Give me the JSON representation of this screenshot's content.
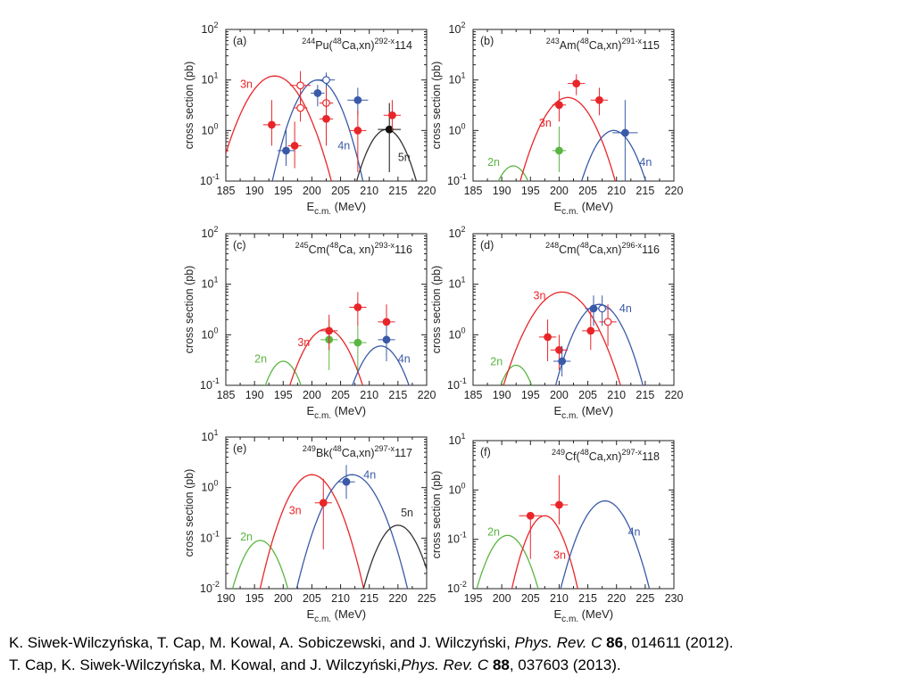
{
  "chart_data": [
    {
      "type": "scatter",
      "panel": "(a)",
      "title": {
        "pre": "244",
        "mid1": "Pu(",
        "sup1": "48",
        "mid2": "Ca,xn)",
        "sup2": "292-x",
        "post": "114"
      },
      "xlabel": "E",
      "xlabel_sub": "c.m.",
      "xlabel_unit": "(MeV)",
      "ylabel": "cross section (pb)",
      "xlim": [
        185,
        220
      ],
      "ylim": [
        0.1,
        100
      ],
      "xticks": [
        "185",
        "190",
        "195",
        "200",
        "205",
        "210",
        "215",
        "220"
      ],
      "yticks": [
        {
          "base": "10",
          "exp": "-1",
          "v": 0.1
        },
        {
          "base": "10",
          "exp": "0",
          "v": 1
        },
        {
          "base": "10",
          "exp": "1",
          "v": 10
        },
        {
          "base": "10",
          "exp": "2",
          "v": 100
        }
      ],
      "series": [
        {
          "name": "3n",
          "color": "#e8262a",
          "curve": {
            "peak": 12,
            "x0": 193.5,
            "sigma": 3.2
          },
          "label": {
            "text": "3n",
            "x": 187.5,
            "y": 7
          }
        },
        {
          "name": "4n",
          "color": "#3a5aa8",
          "curve": {
            "peak": 10,
            "x0": 201,
            "sigma": 2.6
          },
          "label": {
            "text": "4n",
            "x": 204.5,
            "y": 0.42
          }
        },
        {
          "name": "5n",
          "color": "#333333",
          "curve": {
            "peak": 1.05,
            "x0": 213,
            "sigma": 2.4
          },
          "label": {
            "text": "5n",
            "x": 215,
            "y": 0.25
          }
        }
      ],
      "points": [
        {
          "x": 193,
          "y": 1.3,
          "color": "#e8262a",
          "filled": true,
          "xerr": 1.5,
          "ylo": 0.5,
          "yhi": 4
        },
        {
          "x": 197,
          "y": 0.5,
          "color": "#e8262a",
          "filled": true,
          "xerr": 1.2,
          "ylo": 0.18,
          "yhi": 1.5
        },
        {
          "x": 195.5,
          "y": 0.4,
          "color": "#3a5aa8",
          "filled": true,
          "xerr": 1.5,
          "ylo": 0.2,
          "yhi": 1.1
        },
        {
          "x": 198,
          "y": 7.8,
          "color": "#e8262a",
          "filled": false,
          "xerr": 1.8,
          "ylo": 3,
          "yhi": 15
        },
        {
          "x": 198,
          "y": 2.8,
          "color": "#e8262a",
          "filled": false,
          "xerr": 1.2,
          "ylo": 1.5,
          "yhi": 5
        },
        {
          "x": 201,
          "y": 5.5,
          "color": "#3a5aa8",
          "filled": true,
          "xerr": 1.2,
          "ylo": 3,
          "yhi": 8
        },
        {
          "x": 202.5,
          "y": 10,
          "color": "#3a5aa8",
          "filled": false,
          "xerr": 1.5,
          "ylo": 7,
          "yhi": 14
        },
        {
          "x": 202.5,
          "y": 3.5,
          "color": "#e8262a",
          "filled": false,
          "xerr": 1.2,
          "ylo": 1.5,
          "yhi": 7
        },
        {
          "x": 202.5,
          "y": 1.7,
          "color": "#e8262a",
          "filled": true,
          "xerr": 1.2,
          "ylo": 0.5,
          "yhi": 4
        },
        {
          "x": 208,
          "y": 4,
          "color": "#3a5aa8",
          "filled": true,
          "xerr": 1.8,
          "ylo": 2,
          "yhi": 7
        },
        {
          "x": 208,
          "y": 1,
          "color": "#e8262a",
          "filled": true,
          "xerr": 1.5,
          "ylo": 0.15,
          "yhi": 2.5
        },
        {
          "x": 213.5,
          "y": 1.05,
          "color": "#111111",
          "filled": true,
          "xerr": 2,
          "ylo": 0.15,
          "yhi": 3.5
        },
        {
          "x": 214,
          "y": 2,
          "color": "#e8262a",
          "filled": true,
          "xerr": 1.5,
          "ylo": 1,
          "yhi": 4
        }
      ]
    },
    {
      "type": "scatter",
      "panel": "(b)",
      "title": {
        "pre": "243",
        "mid1": "Am(",
        "sup1": "48",
        "mid2": "Ca,xn)",
        "sup2": "291-x",
        "post": "115"
      },
      "xlabel": "E",
      "xlabel_sub": "c.m.",
      "xlabel_unit": "(MeV)",
      "ylabel": "cross section (pb)",
      "xlim": [
        185,
        220
      ],
      "ylim": [
        0.1,
        100
      ],
      "xticks": [
        "185",
        "190",
        "195",
        "200",
        "205",
        "210",
        "215",
        "220"
      ],
      "yticks": [
        {
          "base": "10",
          "exp": "-1",
          "v": 0.1
        },
        {
          "base": "10",
          "exp": "0",
          "v": 1
        },
        {
          "base": "10",
          "exp": "1",
          "v": 10
        },
        {
          "base": "10",
          "exp": "2",
          "v": 100
        }
      ],
      "series": [
        {
          "name": "2n",
          "color": "#5ab642",
          "curve": {
            "peak": 0.2,
            "x0": 192,
            "sigma": 2.2
          },
          "label": {
            "text": "2n",
            "x": 187.5,
            "y": 0.2
          }
        },
        {
          "name": "3n",
          "color": "#e8262a",
          "curve": {
            "peak": 4.5,
            "x0": 201.5,
            "sigma": 3
          },
          "label": {
            "text": "3n",
            "x": 196.5,
            "y": 1.2
          }
        },
        {
          "name": "4n",
          "color": "#3a5aa8",
          "curve": {
            "peak": 1,
            "x0": 209.5,
            "sigma": 2.6
          },
          "label": {
            "text": "4n",
            "x": 214,
            "y": 0.2
          }
        }
      ],
      "points": [
        {
          "x": 200,
          "y": 0.4,
          "color": "#5ab642",
          "filled": true,
          "xerr": 1.2,
          "ylo": 0.15,
          "yhi": 1.2
        },
        {
          "x": 200,
          "y": 3.2,
          "color": "#e8262a",
          "filled": true,
          "xerr": 1.2,
          "ylo": 1.5,
          "yhi": 6
        },
        {
          "x": 203,
          "y": 8.5,
          "color": "#e8262a",
          "filled": true,
          "xerr": 1.5,
          "ylo": 5,
          "yhi": 13
        },
        {
          "x": 207,
          "y": 4,
          "color": "#e8262a",
          "filled": true,
          "xerr": 1.5,
          "ylo": 2,
          "yhi": 7
        },
        {
          "x": 211.5,
          "y": 0.9,
          "color": "#3a5aa8",
          "filled": true,
          "xerr": 2.2,
          "ylo": 0.1,
          "yhi": 4
        }
      ]
    },
    {
      "type": "scatter",
      "panel": "(c)",
      "title": {
        "pre": "245",
        "mid1": "Cm(",
        "sup1": "48",
        "mid2": "Ca, xn)",
        "sup2": "293-x",
        "post": "116"
      },
      "xlabel": "E",
      "xlabel_sub": "c.m.",
      "xlabel_unit": "(MeV)",
      "ylabel": "cross section (pb)",
      "xlim": [
        185,
        220
      ],
      "ylim": [
        0.1,
        100
      ],
      "xticks": [
        "185",
        "190",
        "195",
        "200",
        "205",
        "210",
        "215",
        "220"
      ],
      "yticks": [
        {
          "base": "10",
          "exp": "-1",
          "v": 0.1
        },
        {
          "base": "10",
          "exp": "0",
          "v": 1
        },
        {
          "base": "10",
          "exp": "1",
          "v": 10
        },
        {
          "base": "10",
          "exp": "2",
          "v": 100
        }
      ],
      "series": [
        {
          "name": "2n",
          "color": "#5ab642",
          "curve": {
            "peak": 0.3,
            "x0": 195,
            "sigma": 2.1
          },
          "label": {
            "text": "2n",
            "x": 190,
            "y": 0.28
          }
        },
        {
          "name": "3n",
          "color": "#e8262a",
          "curve": {
            "peak": 1.3,
            "x0": 202.5,
            "sigma": 2.8
          },
          "label": {
            "text": "3n",
            "x": 197.5,
            "y": 0.6
          }
        },
        {
          "name": "4n",
          "color": "#3a5aa8",
          "curve": {
            "peak": 0.6,
            "x0": 212,
            "sigma": 2.6
          },
          "label": {
            "text": "4n",
            "x": 215,
            "y": 0.28
          }
        }
      ],
      "points": [
        {
          "x": 203,
          "y": 0.8,
          "color": "#5ab642",
          "filled": true,
          "xerr": 1.5,
          "ylo": 0.2,
          "yhi": 2
        },
        {
          "x": 203,
          "y": 1.2,
          "color": "#e8262a",
          "filled": true,
          "xerr": 1.5,
          "ylo": 0.5,
          "yhi": 2.5
        },
        {
          "x": 208,
          "y": 0.7,
          "color": "#5ab642",
          "filled": true,
          "xerr": 1.5,
          "ylo": 0.2,
          "yhi": 1.5
        },
        {
          "x": 208,
          "y": 3.5,
          "color": "#e8262a",
          "filled": true,
          "xerr": 1.5,
          "ylo": 1.5,
          "yhi": 7
        },
        {
          "x": 213,
          "y": 1.8,
          "color": "#e8262a",
          "filled": true,
          "xerr": 1.5,
          "ylo": 0.7,
          "yhi": 4
        },
        {
          "x": 213,
          "y": 0.8,
          "color": "#3a5aa8",
          "filled": true,
          "xerr": 1.5,
          "ylo": 0.3,
          "yhi": 1.5
        }
      ]
    },
    {
      "type": "scatter",
      "panel": "(d)",
      "title": {
        "pre": "248",
        "mid1": "Cm(",
        "sup1": "48",
        "mid2": "Ca,xn)",
        "sup2": "296-x",
        "post": "116"
      },
      "xlabel": "E",
      "xlabel_sub": "c.m.",
      "xlabel_unit": "(MeV)",
      "ylabel": "cross section (pb)",
      "xlim": [
        185,
        220
      ],
      "ylim": [
        0.1,
        100
      ],
      "xticks": [
        "185",
        "190",
        "195",
        "200",
        "205",
        "210",
        "215",
        "220"
      ],
      "yticks": [
        {
          "base": "10",
          "exp": "-1",
          "v": 0.1
        },
        {
          "base": "10",
          "exp": "0",
          "v": 1
        },
        {
          "base": "10",
          "exp": "1",
          "v": 10
        },
        {
          "base": "10",
          "exp": "2",
          "v": 100
        }
      ],
      "series": [
        {
          "name": "2n",
          "color": "#5ab642",
          "curve": {
            "peak": 0.25,
            "x0": 192.5,
            "sigma": 2
          },
          "label": {
            "text": "2n",
            "x": 188,
            "y": 0.25
          }
        },
        {
          "name": "3n",
          "color": "#e8262a",
          "curve": {
            "peak": 7,
            "x0": 200.5,
            "sigma": 3.5
          },
          "label": {
            "text": "3n",
            "x": 195.5,
            "y": 5
          }
        },
        {
          "name": "4n",
          "color": "#3a5aa8",
          "curve": {
            "peak": 4,
            "x0": 207,
            "sigma": 2.8
          },
          "label": {
            "text": "4n",
            "x": 210.5,
            "y": 2.8
          }
        }
      ],
      "points": [
        {
          "x": 198,
          "y": 0.9,
          "color": "#e8262a",
          "filled": true,
          "xerr": 1.5,
          "ylo": 0.3,
          "yhi": 2
        },
        {
          "x": 200,
          "y": 0.5,
          "color": "#e8262a",
          "filled": true,
          "xerr": 1.5,
          "ylo": 0.2,
          "yhi": 1
        },
        {
          "x": 200.5,
          "y": 0.3,
          "color": "#3a5aa8",
          "filled": true,
          "xerr": 1.5,
          "ylo": 0.15,
          "yhi": 0.6
        },
        {
          "x": 205.5,
          "y": 1.2,
          "color": "#e8262a",
          "filled": true,
          "xerr": 1.5,
          "ylo": 0.5,
          "yhi": 3
        },
        {
          "x": 206,
          "y": 3.3,
          "color": "#3a5aa8",
          "filled": true,
          "xerr": 1.5,
          "ylo": 1.5,
          "yhi": 6
        },
        {
          "x": 207.5,
          "y": 3.3,
          "color": "#3a5aa8",
          "filled": false,
          "xerr": 1.5,
          "ylo": 1.5,
          "yhi": 6
        },
        {
          "x": 208.5,
          "y": 1.8,
          "color": "#e8262a",
          "filled": false,
          "xerr": 1.5,
          "ylo": 0.6,
          "yhi": 4
        }
      ]
    },
    {
      "type": "scatter",
      "panel": "(e)",
      "title": {
        "pre": "249",
        "mid1": "Bk(",
        "sup1": "48",
        "mid2": "Ca,xn)",
        "sup2": "297-x",
        "post": "117"
      },
      "xlabel": "E",
      "xlabel_sub": "c.m.",
      "xlabel_unit": "(MeV)",
      "ylabel": "cross section (pb)",
      "xlim": [
        190,
        225
      ],
      "ylim": [
        0.01,
        10
      ],
      "xticks": [
        "190",
        "195",
        "200",
        "205",
        "210",
        "215",
        "220",
        "225"
      ],
      "yticks": [
        {
          "base": "10",
          "exp": "-2",
          "v": 0.01
        },
        {
          "base": "10",
          "exp": "-1",
          "v": 0.1
        },
        {
          "base": "10",
          "exp": "0",
          "v": 1
        },
        {
          "base": "10",
          "exp": "1",
          "v": 10
        }
      ],
      "series": [
        {
          "name": "2n",
          "color": "#5ab642",
          "curve": {
            "peak": 0.09,
            "x0": 196,
            "sigma": 2.3
          },
          "label": {
            "text": "2n",
            "x": 192.5,
            "y": 0.09
          }
        },
        {
          "name": "3n",
          "color": "#e8262a",
          "curve": {
            "peak": 1.8,
            "x0": 205,
            "sigma": 2.8
          },
          "label": {
            "text": "3n",
            "x": 201,
            "y": 0.3
          }
        },
        {
          "name": "4n",
          "color": "#3a5aa8",
          "curve": {
            "peak": 1.8,
            "x0": 212,
            "sigma": 3
          },
          "label": {
            "text": "4n",
            "x": 214,
            "y": 1.5
          }
        },
        {
          "name": "5n",
          "color": "#333333",
          "curve": {
            "peak": 0.18,
            "x0": 220,
            "sigma": 2.5
          },
          "label": {
            "text": "5n",
            "x": 220.5,
            "y": 0.27
          }
        }
      ],
      "points": [
        {
          "x": 207,
          "y": 0.5,
          "color": "#e8262a",
          "filled": true,
          "xerr": 1.5,
          "ylo": 0.06,
          "yhi": 1.5
        },
        {
          "x": 211,
          "y": 1.3,
          "color": "#3a5aa8",
          "filled": true,
          "xerr": 1.5,
          "ylo": 0.6,
          "yhi": 2.8
        }
      ]
    },
    {
      "type": "scatter",
      "panel": "(f)",
      "title": {
        "pre": "249",
        "mid1": "Cf(",
        "sup1": "48",
        "mid2": "Ca,xn)",
        "sup2": "297-x",
        "post": "118"
      },
      "xlabel": "E",
      "xlabel_sub": "c.m.",
      "xlabel_unit": "(MeV)",
      "ylabel": "cross section (pb)",
      "xlim": [
        195,
        230
      ],
      "ylim": [
        0.01,
        10
      ],
      "xticks": [
        "195",
        "200",
        "205",
        "210",
        "215",
        "220",
        "225",
        "230"
      ],
      "yticks": [
        {
          "base": "10",
          "exp": "-2",
          "v": 0.01
        },
        {
          "base": "10",
          "exp": "-1",
          "v": 0.1
        },
        {
          "base": "10",
          "exp": "0",
          "v": 1
        },
        {
          "base": "10",
          "exp": "1",
          "v": 10
        }
      ],
      "series": [
        {
          "name": "2n",
          "color": "#5ab642",
          "curve": {
            "peak": 0.12,
            "x0": 201,
            "sigma": 2.4
          },
          "label": {
            "text": "2n",
            "x": 197.5,
            "y": 0.12
          }
        },
        {
          "name": "3n",
          "color": "#e8262a",
          "curve": {
            "peak": 0.3,
            "x0": 207.5,
            "sigma": 2.2
          },
          "label": {
            "text": "3n",
            "x": 209,
            "y": 0.04
          }
        },
        {
          "name": "4n",
          "color": "#3a5aa8",
          "curve": {
            "peak": 0.6,
            "x0": 218,
            "sigma": 2.7
          },
          "label": {
            "text": "4n",
            "x": 222,
            "y": 0.12
          }
        }
      ],
      "points": [
        {
          "x": 205,
          "y": 0.3,
          "color": "#e8262a",
          "filled": true,
          "xerr": 2,
          "ylo": 0.04,
          "yhi": 0.3
        },
        {
          "x": 210,
          "y": 0.5,
          "color": "#e8262a",
          "filled": true,
          "xerr": 1.5,
          "ylo": 0.2,
          "yhi": 2
        }
      ]
    }
  ],
  "references": [
    {
      "authors": "K. Siwek-Wilczyńska, T. Cap, M. Kowal, A. Sobiczewski,  and J. Wilczyński, ",
      "journal": "Phys. Rev. C ",
      "volume": "86",
      "rest": ", 014611 (2012)."
    },
    {
      "authors": "T. Cap,  K. Siwek-Wilczyńska, M. Kowal, and J. Wilczyński,",
      "journal": "Phys.  Rev.  C ",
      "volume": "88",
      "rest": ", 037603 (2013)."
    }
  ]
}
